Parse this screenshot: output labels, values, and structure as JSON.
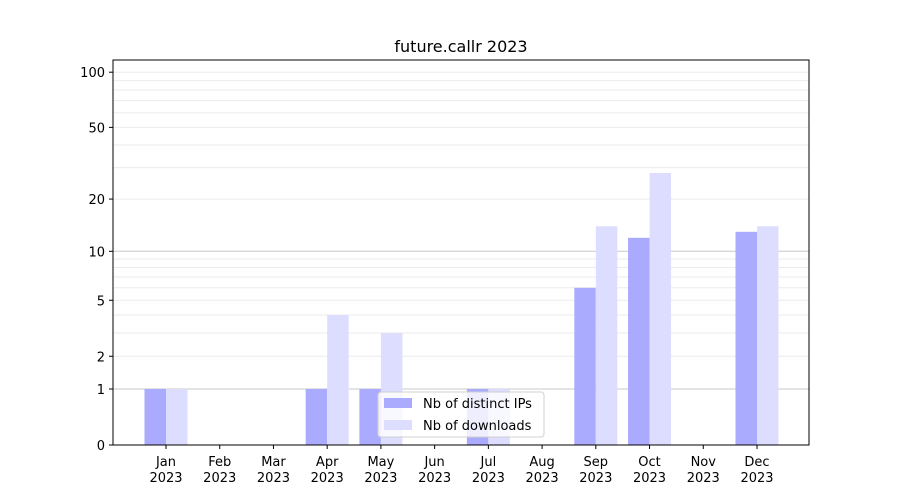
{
  "chart_data": {
    "type": "bar",
    "title": "future.callr 2023",
    "xlabel": "",
    "ylabel": "",
    "yscale": "log(1+y)",
    "ylim": [
      0,
      110
    ],
    "yticks": [
      0,
      1,
      2,
      5,
      10,
      20,
      50,
      100
    ],
    "y_minor_grid": [
      3,
      4,
      6,
      7,
      8,
      9,
      30,
      40,
      60,
      70,
      80,
      90
    ],
    "grid": true,
    "legend_position": "bottom-center",
    "categories": [
      "Jan\n2023",
      "Feb\n2023",
      "Mar\n2023",
      "Apr\n2023",
      "May\n2023",
      "Jun\n2023",
      "Jul\n2023",
      "Aug\n2023",
      "Sep\n2023",
      "Oct\n2023",
      "Nov\n2023",
      "Dec\n2023"
    ],
    "series": [
      {
        "name": "Nb of distinct IPs",
        "color": "#aaaaff",
        "values": [
          1,
          0,
          0,
          1,
          1,
          0,
          1,
          0,
          6,
          12,
          0,
          13
        ]
      },
      {
        "name": "Nb of downloads",
        "color": "#ddddff",
        "values": [
          1,
          0,
          0,
          4,
          3,
          0,
          1,
          0,
          14,
          28,
          0,
          14
        ]
      }
    ]
  }
}
